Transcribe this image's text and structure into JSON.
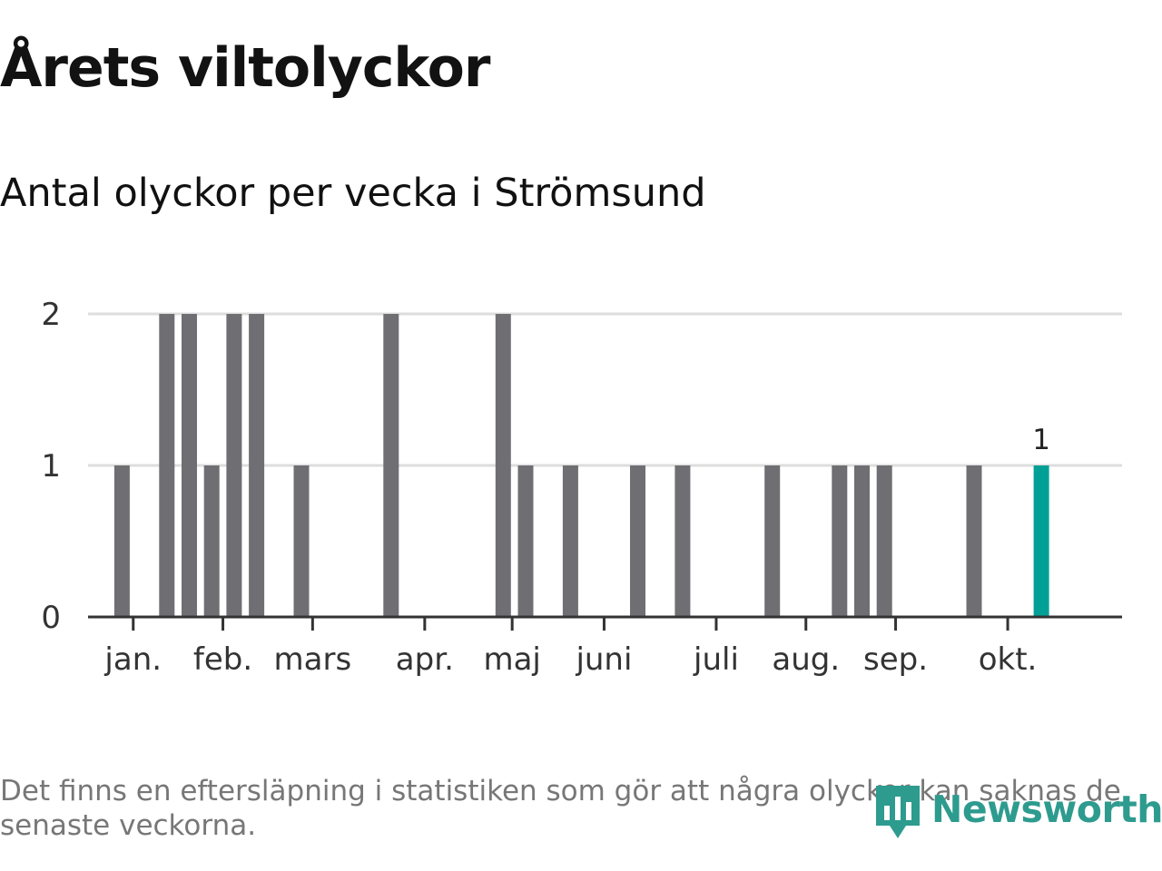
{
  "header": {
    "title": "Årets viltolyckor",
    "subtitle": "Antal olyckor per vecka i Strömsund"
  },
  "footer": {
    "note": "Det finns en eftersläpning i statistiken som gör att några olyckor kan saknas de senaste veckorna.",
    "brand": "Newsworthy"
  },
  "colors": {
    "bar": "#6f6e73",
    "highlight": "#00a096",
    "grid": "#dddddd",
    "axis": "#333333",
    "brand": "#2e9b8f"
  },
  "chart_data": {
    "type": "bar",
    "title": "Årets viltolyckor",
    "subtitle": "Antal olyckor per vecka i Strömsund",
    "xlabel": "",
    "ylabel": "",
    "ylim": [
      0,
      2
    ],
    "yticks": [
      "0",
      "1",
      "2"
    ],
    "x": [
      1,
      2,
      3,
      4,
      5,
      6,
      7,
      8,
      9,
      10,
      11,
      12,
      13,
      14,
      15,
      16,
      17,
      18,
      19,
      20,
      21,
      22,
      23,
      24,
      25,
      26,
      27,
      28,
      29,
      30,
      31,
      32,
      33,
      34,
      35,
      36,
      37,
      38,
      39,
      40,
      41,
      42,
      43,
      44
    ],
    "values": [
      0,
      0,
      1,
      0,
      2,
      2,
      1,
      2,
      2,
      0,
      1,
      0,
      0,
      0,
      2,
      0,
      0,
      0,
      0,
      2,
      1,
      0,
      1,
      0,
      0,
      1,
      0,
      1,
      0,
      0,
      0,
      1,
      0,
      0,
      1,
      1,
      1,
      0,
      0,
      0,
      1,
      0,
      0,
      1
    ],
    "highlight_week": 44,
    "highlight_label": "1",
    "month_labels": [
      {
        "label": "jan.",
        "week": 3.5
      },
      {
        "label": "feb.",
        "week": 7.5
      },
      {
        "label": "mars",
        "week": 11.5
      },
      {
        "label": "apr.",
        "week": 16.5
      },
      {
        "label": "maj",
        "week": 20.4
      },
      {
        "label": "juni",
        "week": 24.5
      },
      {
        "label": "juli",
        "week": 29.5
      },
      {
        "label": "aug.",
        "week": 33.5
      },
      {
        "label": "sep.",
        "week": 37.5
      },
      {
        "label": "okt.",
        "week": 42.5
      }
    ]
  }
}
